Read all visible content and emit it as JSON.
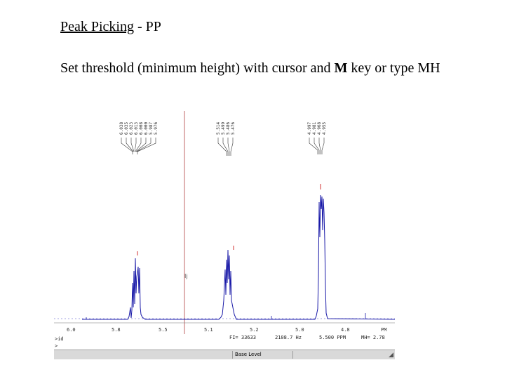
{
  "slide": {
    "title_underlined": "Peak Picking",
    "title_rest": " - PP",
    "body_before": "Set threshold (minimum height) with cursor and ",
    "body_bold": "M",
    "body_after": " key or type MH"
  },
  "spectrum": {
    "peak_labels_group1": [
      "6.038",
      "6.035",
      "6.023",
      "6.013",
      "6.008",
      "6.000",
      "5.987",
      "5.976"
    ],
    "peak_labels_group2": [
      "5.514",
      "5.499",
      "5.486",
      "5.476"
    ],
    "peak_labels_group3": [
      "4.997",
      "4.981",
      "4.968",
      "4.955"
    ],
    "axis_ticks": [
      "6.0",
      "5.8",
      "5.5",
      "5.1",
      "5.2",
      "5.0",
      "4.8",
      "PM"
    ],
    "cursor_label": "Ij",
    "info_line": {
      "fi": "FI= 33633",
      "freq": "2108.7 Hz",
      "ppm": "5.500 PPM",
      "mh": "MH= 2.78"
    },
    "command_prompt": ">id",
    "command_prompt_2": ">"
  },
  "status_bar": {
    "cell_label": "Base Level"
  },
  "colors": {
    "spectrum": "#1a1aa8",
    "cursor_line": "#b04040",
    "threshold_marks": "#d03030",
    "status_bar": "#d9d9d9"
  }
}
